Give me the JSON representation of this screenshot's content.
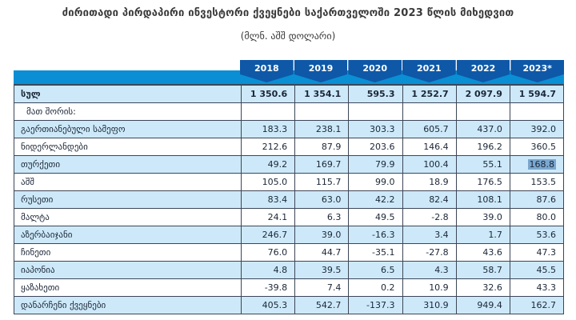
{
  "title": "ძირითადი პირდაპირი ინვესტორი ქვეყნები საქართველოში 2023 წლის მიხედვით",
  "subtitle": "(მლნ. აშშ დოლარი)",
  "colors": {
    "header_dark_blue": "#0e58a7",
    "header_band_cyan": "#0a8fd4",
    "row_shaded_blue": "#cde9f9",
    "selection_highlight": "#7ba7cf",
    "border": "#3c4657",
    "text": "#1b2637"
  },
  "table": {
    "year_columns": [
      "2018",
      "2019",
      "2020",
      "2021",
      "2022",
      "2023*"
    ],
    "rows": [
      {
        "label": "სულ",
        "style": "total",
        "values": [
          "1 350.6",
          "1 354.1",
          "595.3",
          "1 252.7",
          "2 097.9",
          "1 594.7"
        ]
      },
      {
        "label": "მათ შორის:",
        "style": "subheader",
        "values": [
          "",
          "",
          "",
          "",
          "",
          ""
        ]
      },
      {
        "label": "გაერთიანებული სამეფო",
        "values": [
          "183.3",
          "238.1",
          "303.3",
          "605.7",
          "437.0",
          "392.0"
        ]
      },
      {
        "label": "ნიდერლანდები",
        "values": [
          "212.6",
          "87.9",
          "203.6",
          "146.4",
          "196.2",
          "360.5"
        ]
      },
      {
        "label": "თურქეთი",
        "values": [
          "49.2",
          "169.7",
          "79.9",
          "100.4",
          "55.1",
          "168.8"
        ]
      },
      {
        "label": "აშშ",
        "values": [
          "105.0",
          "115.7",
          "99.0",
          "18.9",
          "176.5",
          "153.5"
        ]
      },
      {
        "label": "რუსეთი",
        "values": [
          "83.4",
          "63.0",
          "42.2",
          "82.4",
          "108.1",
          "87.6"
        ]
      },
      {
        "label": "მალტა",
        "values": [
          "24.1",
          "6.3",
          "49.5",
          "-2.8",
          "39.0",
          "80.0"
        ]
      },
      {
        "label": "აზერბაიჯანი",
        "values": [
          "246.7",
          "39.0",
          "-16.3",
          "3.4",
          "1.7",
          "53.6"
        ]
      },
      {
        "label": "ჩინეთი",
        "values": [
          "76.0",
          "44.7",
          "-35.1",
          "-27.8",
          "43.6",
          "47.3"
        ]
      },
      {
        "label": "იაპონია",
        "values": [
          "4.8",
          "39.5",
          "6.5",
          "4.3",
          "58.7",
          "45.5"
        ]
      },
      {
        "label": "ყაზახეთი",
        "values": [
          "-39.8",
          "7.4",
          "0.2",
          "10.9",
          "32.6",
          "43.3"
        ]
      },
      {
        "label": "დანარჩენი ქვეყნები",
        "values": [
          "405.3",
          "542.7",
          "-137.3",
          "310.9",
          "949.4",
          "162.7"
        ]
      }
    ],
    "highlight": {
      "row_index": 4,
      "col_index": 5,
      "value": "168.8"
    }
  }
}
